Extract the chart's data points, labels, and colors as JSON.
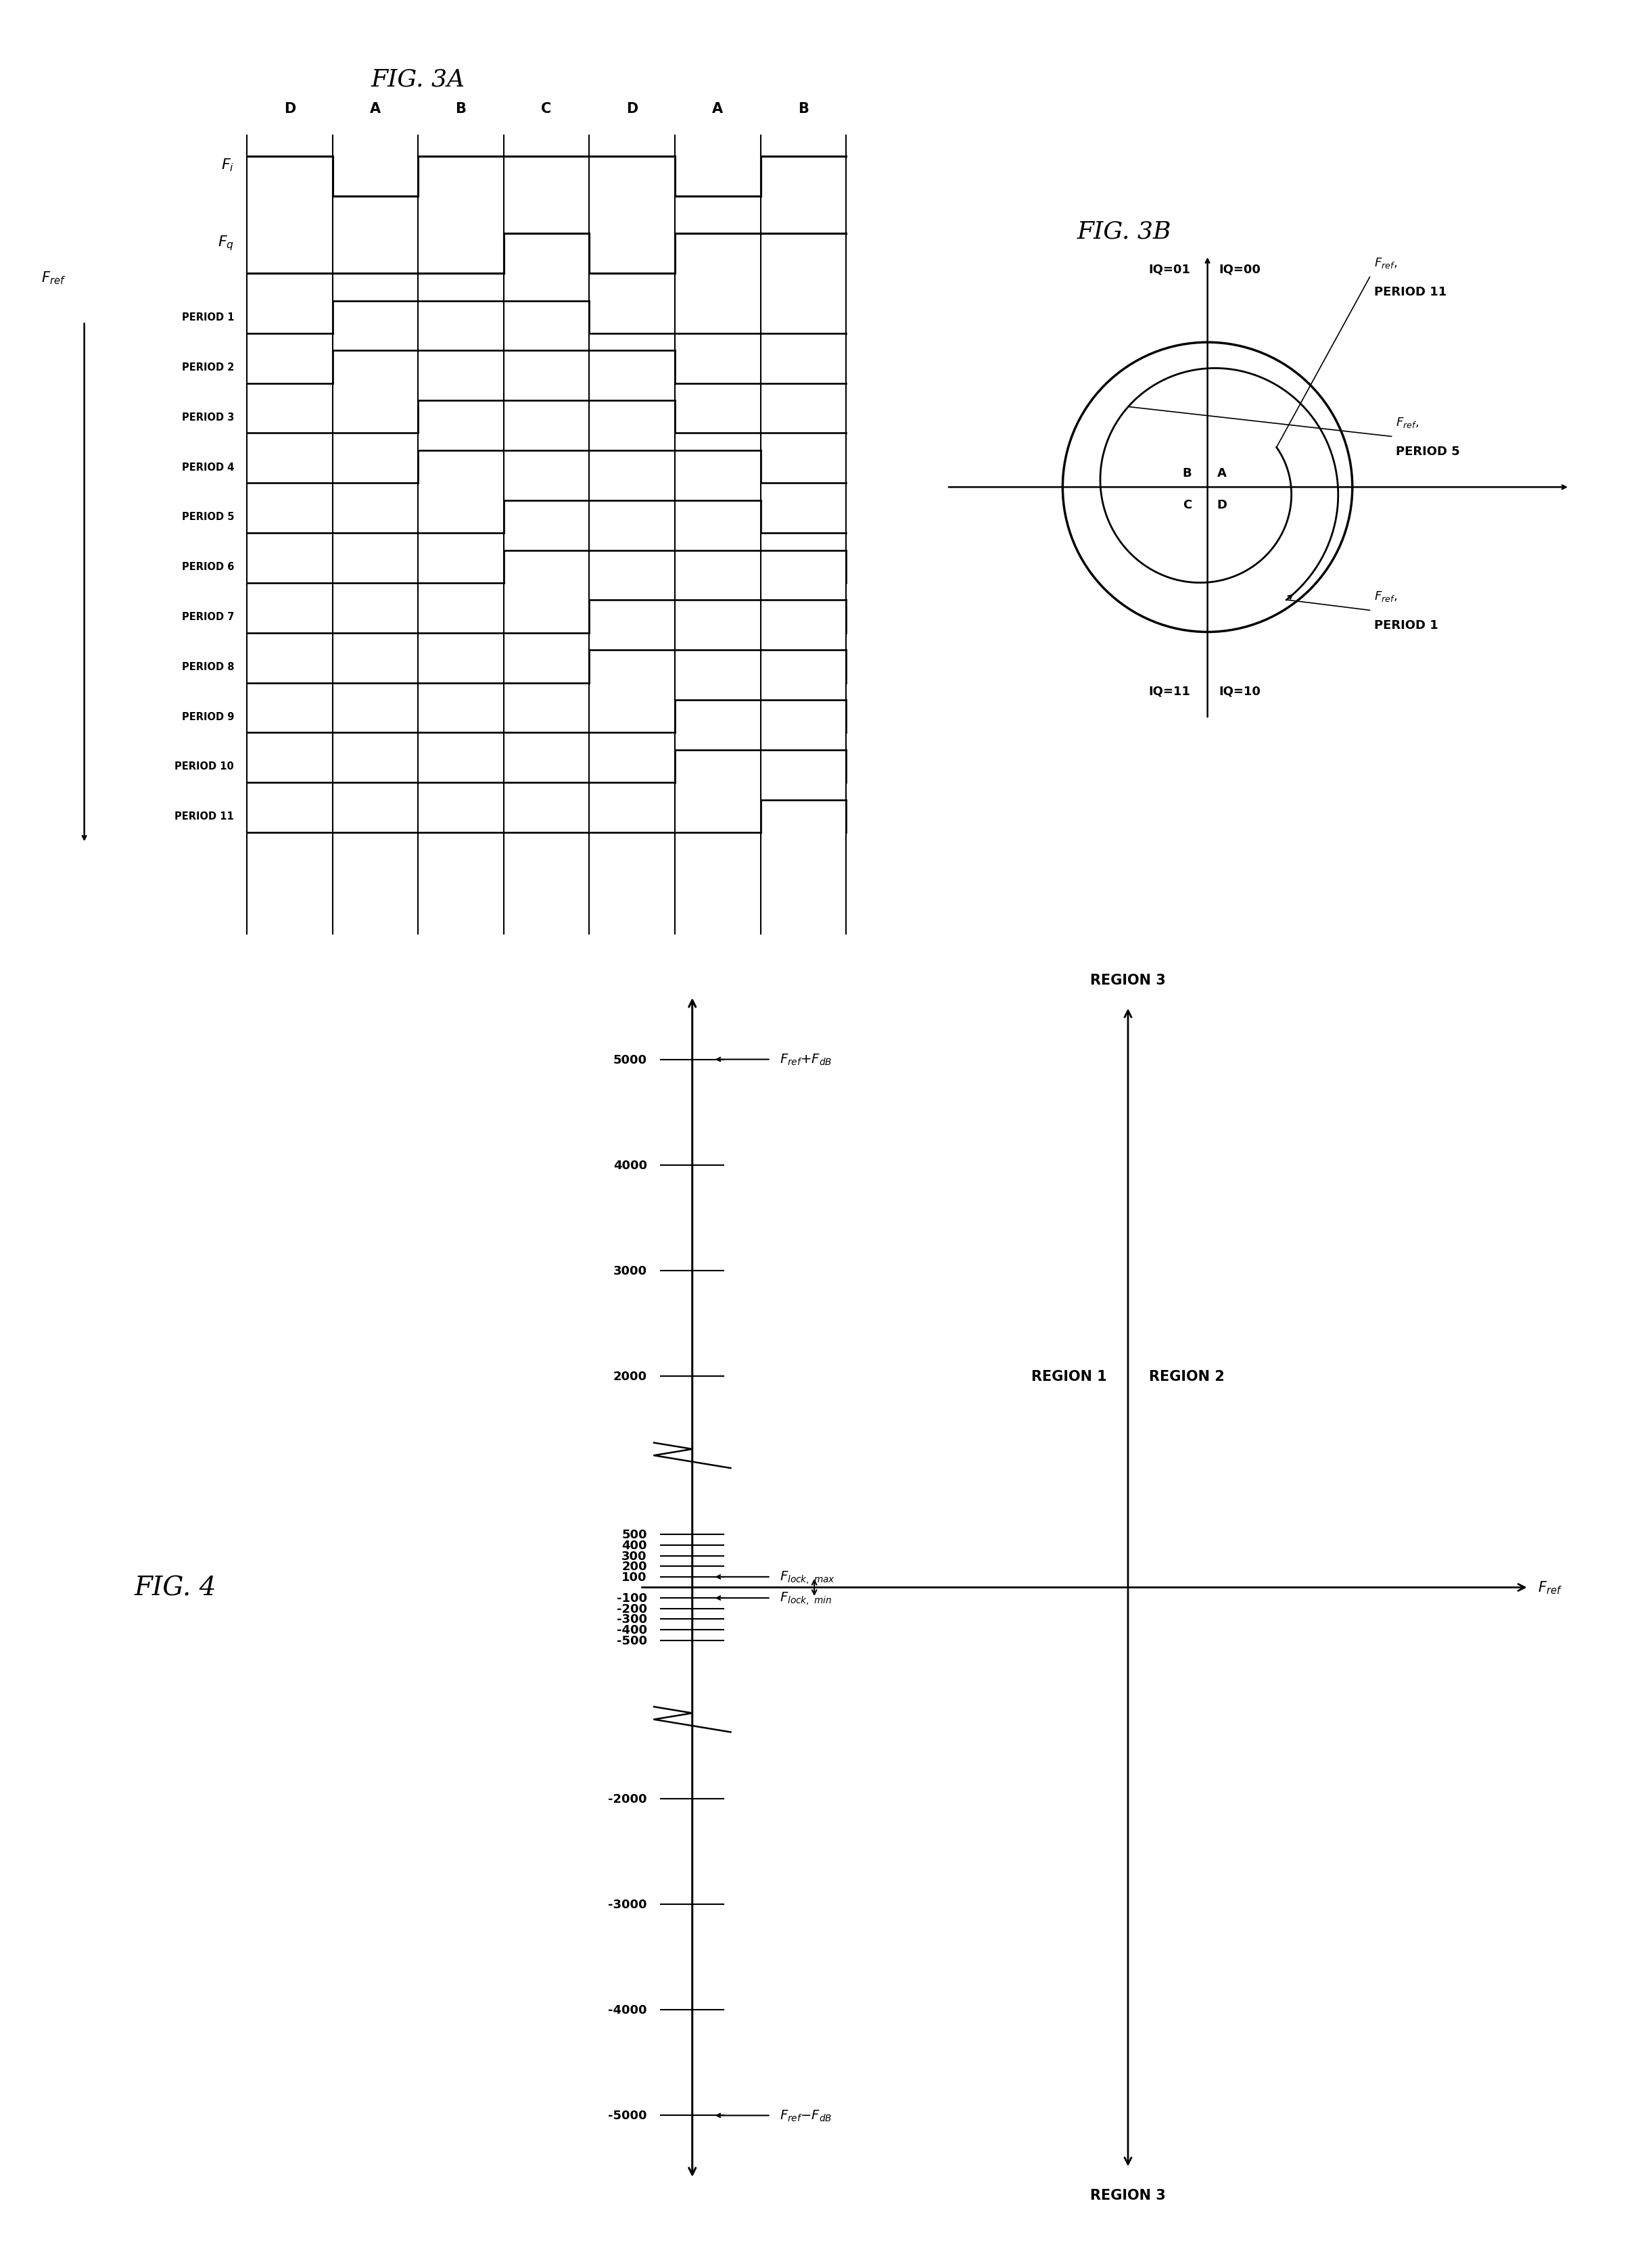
{
  "fig_title_3a": "FIG. 3A",
  "fig_title_3b": "FIG. 3B",
  "fig_title_4": "FIG. 4",
  "background_color": "#ffffff",
  "col_labels": [
    "D",
    "A",
    "B",
    "C",
    "D",
    "A",
    "B"
  ],
  "periods": [
    "PERIOD 1",
    "PERIOD 2",
    "PERIOD 3",
    "PERIOD 4",
    "PERIOD 5",
    "PERIOD 6",
    "PERIOD 7",
    "PERIOD 8",
    "PERIOD 9",
    "PERIOD 10",
    "PERIOD 11"
  ],
  "fi_pattern": [
    1,
    0,
    1,
    1,
    1,
    0,
    1
  ],
  "fq_pattern": [
    0,
    0,
    0,
    1,
    0,
    1,
    1
  ],
  "tick_values_neg": [
    -5000,
    -4000,
    -3000,
    -2000,
    -500,
    -400,
    -300,
    -200,
    -100
  ],
  "tick_labels_neg": [
    "-5000",
    "-4000",
    "-3000",
    "-2000",
    "-500",
    "-400",
    "-300",
    "-200",
    "-100"
  ],
  "tick_values_pos": [
    100,
    200,
    300,
    400,
    500,
    2000,
    3000,
    4000,
    5000
  ],
  "tick_labels_pos": [
    "100",
    "200",
    "300",
    "400",
    "500",
    "2000",
    "3000",
    "4000",
    "5000"
  ]
}
